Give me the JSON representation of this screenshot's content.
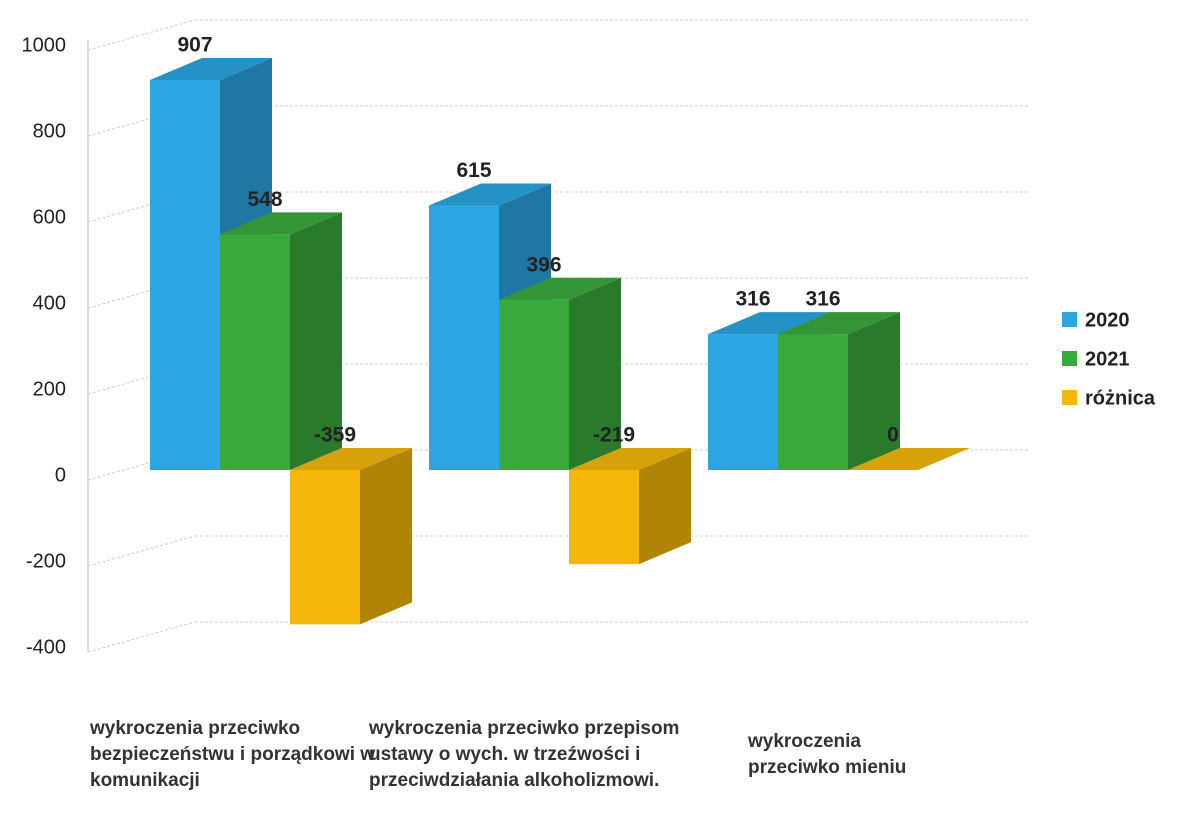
{
  "chart_data": {
    "type": "bar3d",
    "categories": [
      "wykroczenia przeciwko bezpieczeństwu i porządkowi w komunikacji",
      "wykroczenia przeciwko przepisom ustawy o wych. w trzeźwości i przeciwdziałania alkoholizmowi.",
      "wykroczenia przeciwko mieniu"
    ],
    "series": [
      {
        "name": "2020",
        "color": "#2aa6e2",
        "values": [
          907,
          615,
          316
        ]
      },
      {
        "name": "2021",
        "color": "#3aa93c",
        "values": [
          548,
          396,
          316
        ]
      },
      {
        "name": "różnica",
        "color": "#f4b70a",
        "values": [
          -359,
          -219,
          0
        ]
      }
    ],
    "ylim": [
      -400,
      1000
    ],
    "yticks": [
      -400,
      -200,
      0,
      200,
      400,
      600,
      800,
      1000
    ],
    "grid": true,
    "legend": "right"
  }
}
